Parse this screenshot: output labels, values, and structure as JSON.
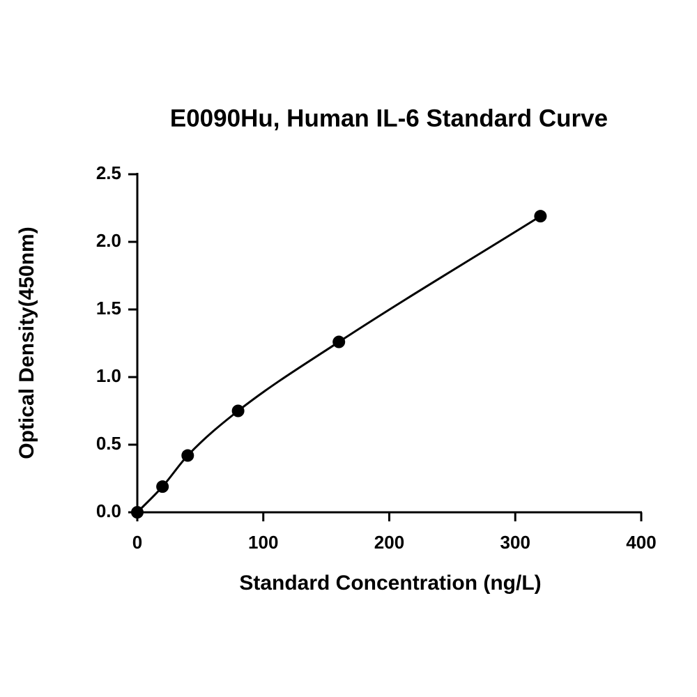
{
  "chart_data": {
    "type": "scatter",
    "title": "E0090Hu, Human IL-6 Standard Curve",
    "x_label": "Standard Concentration (ng/L)",
    "y_label": "Optical Density(450nm)",
    "series": [
      {
        "color": "#000000",
        "x": [
          0,
          20,
          40,
          80,
          160,
          320
        ],
        "values": [
          0.0,
          0.19,
          0.42,
          0.75,
          1.26,
          2.19
        ]
      }
    ],
    "fit_curve": true,
    "xlim": [
      0,
      400
    ],
    "xticks": [
      0,
      100,
      200,
      300,
      400
    ],
    "ylim": [
      0,
      2.5
    ],
    "yticks": [
      {
        "value": 0,
        "label": "0.0"
      },
      0.5,
      {
        "value": 1,
        "label": "1.0"
      },
      1.5,
      {
        "value": 2,
        "label": "2.0"
      },
      2.5
    ]
  }
}
